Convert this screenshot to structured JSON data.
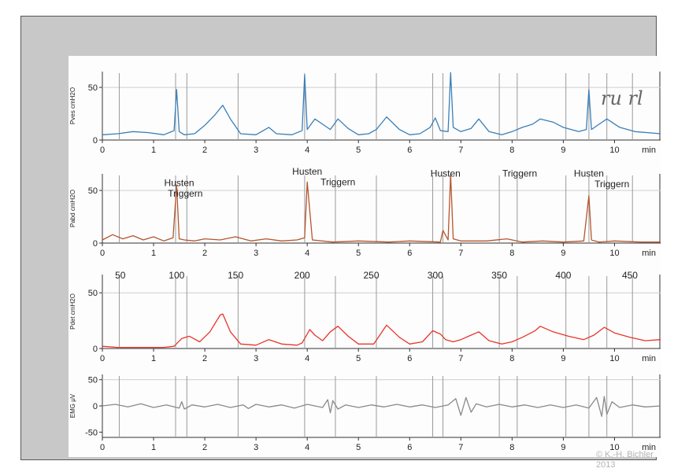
{
  "copyright": "© K.-H. Bichler 2013",
  "handwriting": "ru rl",
  "x_axis": {
    "ticks": [
      0,
      1,
      2,
      3,
      4,
      5,
      6,
      7,
      8,
      9,
      10
    ],
    "unit": "min",
    "range": [
      0,
      10.9
    ]
  },
  "colors": {
    "pves": "#3a7fb8",
    "pabd": "#b5552d",
    "pdet": "#e8352b",
    "emg": "#8a8a8a",
    "marker": "#9a9a9a"
  },
  "markers_min": [
    0.33,
    1.43,
    1.65,
    2.65,
    3.95,
    4.55,
    5.35,
    6.45,
    6.65,
    7.75,
    8.1,
    9.05,
    9.5,
    9.85,
    10.35
  ],
  "chart_data": [
    {
      "type": "line",
      "ylabel": "Pves cmH2O",
      "yticks": [
        0,
        50
      ],
      "ylim": [
        0,
        65
      ],
      "series": [
        {
          "color": "#3a7fb8",
          "x": [
            0,
            0.3,
            0.6,
            0.9,
            1.2,
            1.4,
            1.45,
            1.5,
            1.6,
            1.8,
            2.0,
            2.2,
            2.35,
            2.5,
            2.7,
            3.0,
            3.25,
            3.4,
            3.7,
            3.9,
            3.95,
            4.0,
            4.15,
            4.3,
            4.45,
            4.6,
            4.8,
            5.0,
            5.2,
            5.35,
            5.55,
            5.8,
            6.0,
            6.2,
            6.4,
            6.5,
            6.6,
            6.75,
            6.8,
            6.85,
            7.0,
            7.2,
            7.35,
            7.55,
            7.8,
            8.0,
            8.2,
            8.4,
            8.55,
            8.8,
            9.0,
            9.3,
            9.45,
            9.5,
            9.55,
            9.7,
            9.85,
            10.1,
            10.4,
            10.9
          ],
          "y": [
            5,
            6,
            8,
            7,
            5,
            9,
            48,
            8,
            5,
            6,
            14,
            24,
            33,
            20,
            6,
            5,
            12,
            6,
            5,
            9,
            62,
            10,
            20,
            15,
            10,
            20,
            11,
            5,
            6,
            10,
            22,
            10,
            5,
            6,
            12,
            21,
            9,
            8,
            64,
            12,
            8,
            11,
            20,
            8,
            5,
            8,
            12,
            15,
            20,
            17,
            12,
            8,
            10,
            48,
            10,
            15,
            20,
            12,
            8,
            6
          ]
        }
      ]
    },
    {
      "type": "line",
      "ylabel": "Pabd cmH2O",
      "yticks": [
        0,
        50
      ],
      "ylim": [
        0,
        65
      ],
      "series": [
        {
          "color": "#b5552d",
          "x": [
            0,
            0.2,
            0.4,
            0.6,
            0.8,
            1.0,
            1.2,
            1.38,
            1.45,
            1.5,
            1.6,
            1.8,
            2.0,
            2.3,
            2.6,
            2.9,
            3.2,
            3.5,
            3.8,
            3.95,
            4.0,
            4.1,
            4.5,
            5.0,
            5.6,
            6.0,
            6.6,
            6.65,
            6.75,
            6.8,
            6.85,
            7.0,
            7.5,
            7.9,
            8.2,
            8.6,
            9.0,
            9.4,
            9.5,
            9.55,
            9.7,
            10.0,
            10.5,
            10.9
          ],
          "y": [
            3,
            8,
            4,
            7,
            3,
            6,
            2,
            5,
            55,
            4,
            3,
            2,
            4,
            3,
            6,
            2,
            4,
            2,
            3,
            5,
            58,
            3,
            1,
            2,
            1,
            2,
            1,
            12,
            3,
            65,
            4,
            2,
            2,
            4,
            1,
            2,
            1,
            2,
            45,
            3,
            1,
            2,
            1,
            1
          ]
        }
      ],
      "annotations": [
        {
          "text": "Husten",
          "x": 1.5,
          "y": 54
        },
        {
          "text": "Triggern",
          "x": 1.62,
          "y": 44
        },
        {
          "text": "Husten",
          "x": 4.0,
          "y": 65
        },
        {
          "text": "Triggern",
          "x": 4.6,
          "y": 55
        },
        {
          "text": "Husten",
          "x": 6.7,
          "y": 63
        },
        {
          "text": "Triggern",
          "x": 8.15,
          "y": 63
        },
        {
          "text": "Husten",
          "x": 9.5,
          "y": 63
        },
        {
          "text": "Triggern",
          "x": 9.95,
          "y": 53
        }
      ]
    },
    {
      "type": "line",
      "ylabel": "Pdet cmH2O",
      "yticks": [
        0,
        50
      ],
      "ylim": [
        0,
        65
      ],
      "top_ticks": [
        50,
        100,
        150,
        200,
        250,
        300,
        350,
        400,
        450
      ],
      "top_ticks_x": [
        0.35,
        1.45,
        2.6,
        3.9,
        5.25,
        6.5,
        7.75,
        9.0,
        10.3
      ],
      "series": [
        {
          "color": "#e8352b",
          "x": [
            0,
            0.3,
            0.6,
            0.9,
            1.2,
            1.4,
            1.55,
            1.7,
            1.9,
            2.1,
            2.3,
            2.35,
            2.5,
            2.7,
            3.0,
            3.25,
            3.5,
            3.8,
            3.9,
            4.05,
            4.15,
            4.3,
            4.45,
            4.6,
            4.8,
            5.0,
            5.3,
            5.55,
            5.8,
            6.0,
            6.25,
            6.45,
            6.6,
            6.7,
            6.85,
            7.0,
            7.2,
            7.35,
            7.55,
            7.8,
            8.0,
            8.2,
            8.45,
            8.55,
            8.8,
            9.1,
            9.4,
            9.6,
            9.8,
            10.0,
            10.3,
            10.6,
            10.9
          ],
          "y": [
            2,
            1,
            1,
            1,
            1,
            2,
            9,
            11,
            6,
            15,
            30,
            31,
            15,
            4,
            3,
            8,
            4,
            3,
            5,
            17,
            12,
            7,
            15,
            20,
            11,
            4,
            4,
            21,
            10,
            4,
            6,
            16,
            13,
            8,
            6,
            8,
            12,
            15,
            7,
            4,
            6,
            10,
            16,
            20,
            15,
            11,
            8,
            12,
            19,
            14,
            10,
            7,
            8
          ]
        }
      ]
    },
    {
      "type": "line",
      "ylabel": "EMG μV",
      "yticks": [
        -50,
        0,
        50
      ],
      "ylim": [
        -60,
        60
      ],
      "series": [
        {
          "color": "#8a8a8a",
          "x": [
            0,
            0.25,
            0.5,
            0.75,
            1.0,
            1.25,
            1.5,
            1.55,
            1.6,
            1.75,
            2.0,
            2.25,
            2.5,
            2.75,
            2.85,
            3.0,
            3.25,
            3.5,
            3.75,
            4.0,
            4.3,
            4.4,
            4.45,
            4.5,
            4.6,
            4.75,
            5.0,
            5.25,
            5.5,
            5.75,
            6.0,
            6.25,
            6.5,
            6.75,
            6.9,
            7.0,
            7.1,
            7.2,
            7.3,
            7.5,
            7.75,
            8.0,
            8.25,
            8.5,
            8.75,
            9.0,
            9.25,
            9.5,
            9.65,
            9.75,
            9.8,
            9.85,
            9.95,
            10.1,
            10.35,
            10.6,
            10.9
          ],
          "y": [
            0,
            3,
            -2,
            4,
            -3,
            2,
            -4,
            8,
            -6,
            2,
            -2,
            3,
            -3,
            2,
            -5,
            3,
            -2,
            2,
            -4,
            3,
            -3,
            12,
            -13,
            10,
            -6,
            2,
            -3,
            2,
            -2,
            3,
            -2,
            2,
            -3,
            2,
            14,
            -18,
            16,
            -12,
            4,
            -2,
            3,
            -2,
            2,
            -3,
            2,
            -3,
            2,
            -4,
            16,
            -20,
            18,
            -16,
            8,
            -3,
            2,
            -2,
            0
          ]
        }
      ]
    }
  ]
}
